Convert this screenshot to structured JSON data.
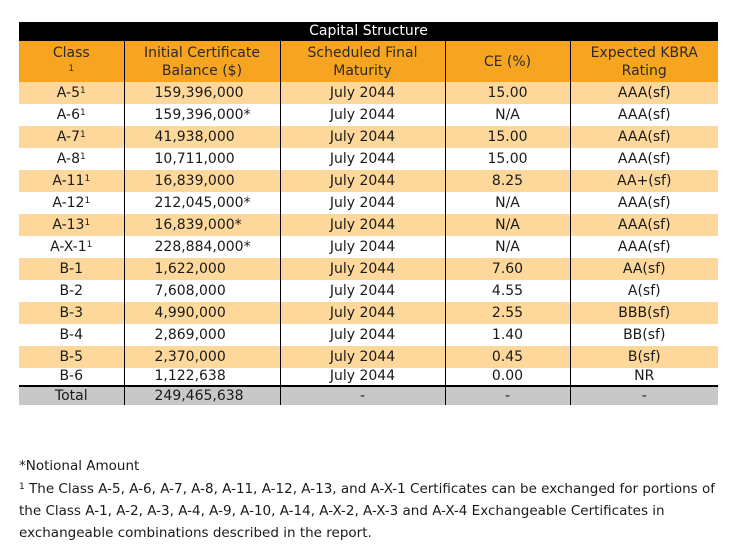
{
  "table": {
    "title": "Capital Structure",
    "headers": {
      "class": "Class",
      "class_sup": "1",
      "balance_line1": "Initial Certificate",
      "balance_line2": "Balance ($)",
      "maturity_line1": "Scheduled Final",
      "maturity_line2": "Maturity",
      "ce": "CE (%)",
      "rating_line1": "Expected KBRA",
      "rating_line2": "Rating"
    },
    "rows": [
      {
        "class": "A-5",
        "sup": "1",
        "balance": "159,396,000",
        "maturity": "July 2044",
        "ce": "15.00",
        "rating": "AAA(sf)"
      },
      {
        "class": "A-6",
        "sup": "1",
        "balance": "159,396,000*",
        "maturity": "July 2044",
        "ce": "N/A",
        "rating": "AAA(sf)"
      },
      {
        "class": "A-7",
        "sup": "1",
        "balance": "41,938,000",
        "maturity": "July 2044",
        "ce": "15.00",
        "rating": "AAA(sf)"
      },
      {
        "class": "A-8",
        "sup": "1",
        "balance": "10,711,000",
        "maturity": "July 2044",
        "ce": "15.00",
        "rating": "AAA(sf)"
      },
      {
        "class": "A-11",
        "sup": "1",
        "balance": "16,839,000",
        "maturity": "July 2044",
        "ce": "8.25",
        "rating": "AA+(sf)"
      },
      {
        "class": "A-12",
        "sup": "1",
        "balance": "212,045,000*",
        "maturity": "July 2044",
        "ce": "N/A",
        "rating": "AAA(sf)"
      },
      {
        "class": "A-13",
        "sup": "1",
        "balance": "16,839,000*",
        "maturity": "July 2044",
        "ce": "N/A",
        "rating": "AAA(sf)"
      },
      {
        "class": "A-X-1",
        "sup": "1",
        "balance": "228,884,000*",
        "maturity": "July 2044",
        "ce": "N/A",
        "rating": "AAA(sf)"
      },
      {
        "class": "B-1",
        "sup": "",
        "balance": "1,622,000",
        "maturity": "July 2044",
        "ce": "7.60",
        "rating": "AA(sf)"
      },
      {
        "class": "B-2",
        "sup": "",
        "balance": "7,608,000",
        "maturity": "July 2044",
        "ce": "4.55",
        "rating": "A(sf)"
      },
      {
        "class": "B-3",
        "sup": "",
        "balance": "4,990,000",
        "maturity": "July 2044",
        "ce": "2.55",
        "rating": "BBB(sf)"
      },
      {
        "class": "B-4",
        "sup": "",
        "balance": "2,869,000",
        "maturity": "July 2044",
        "ce": "1.40",
        "rating": "BB(sf)"
      },
      {
        "class": "B-5",
        "sup": "",
        "balance": "2,370,000",
        "maturity": "July 2044",
        "ce": "0.45",
        "rating": "B(sf)"
      },
      {
        "class": "B-6",
        "sup": "",
        "balance": "1,122,638",
        "maturity": "July 2044",
        "ce": "0.00",
        "rating": "NR"
      }
    ],
    "total": {
      "class": "Total",
      "balance": "249,465,638",
      "maturity": "-",
      "ce": "-",
      "rating": "-"
    }
  },
  "notes": {
    "notional": "*Notional Amount",
    "footnote_sup": "1",
    "footnote_text": " The Class A-5, A-6, A-7, A-8, A-11, A-12, A-13, and A-X-1 Certificates can be exchanged for portions of the Class A-1, A-2, A-3, A-4, A-9, A-10, A-14, A-X-2, A-X-3 and A-X-4 Exchangeable Certificates in exchangeable combinations described in the report."
  },
  "colors": {
    "title_bg": "#000000",
    "header_bg": "#f7a520",
    "alt_row_bg": "#fdd89a",
    "total_bg": "#c8c8c8"
  }
}
